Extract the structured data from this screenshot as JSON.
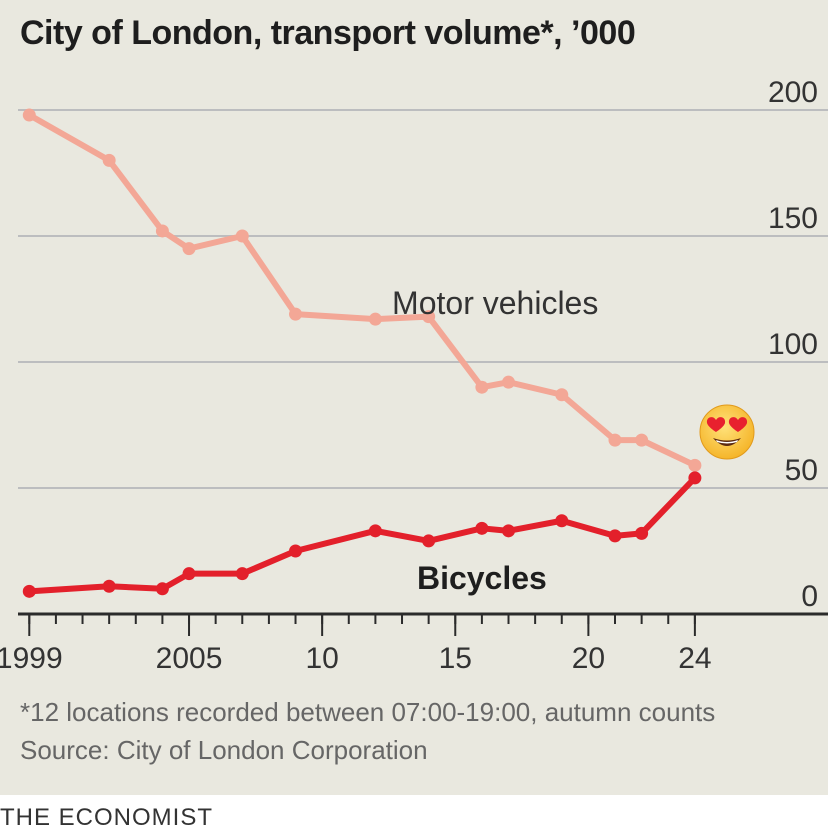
{
  "chart_data": {
    "type": "line",
    "title": "City of London, transport volume*, ’000",
    "xlabel": "",
    "ylabel": "",
    "xlim": [
      1997.9,
      2029
    ],
    "ylim": [
      0,
      200
    ],
    "yticks": [
      0,
      50,
      100,
      150,
      200
    ],
    "ytick_labels": [
      "0",
      "50",
      "100",
      "150",
      "200"
    ],
    "xticks": [
      1999,
      2005,
      2010,
      2015,
      2020,
      2024
    ],
    "xtick_labels": [
      "1999",
      "2005",
      "10",
      "15",
      "20",
      "24"
    ],
    "minor_xticks": [
      1999,
      2000,
      2001,
      2002,
      2003,
      2004,
      2005,
      2006,
      2007,
      2008,
      2009,
      2010,
      2011,
      2012,
      2013,
      2014,
      2015,
      2016,
      2017,
      2018,
      2019,
      2020,
      2021,
      2022,
      2023,
      2024
    ],
    "grid": true,
    "series": [
      {
        "name": "Motor vehicles",
        "label": "Motor vehicles",
        "color": "#f3a796",
        "x": [
          1999,
          2002,
          2004,
          2005,
          2007,
          2009,
          2012,
          2014,
          2016,
          2017,
          2019,
          2021,
          2022,
          2024
        ],
        "values": [
          198,
          180,
          152,
          145,
          150,
          119,
          117,
          118,
          90,
          92,
          87,
          69,
          69,
          59
        ]
      },
      {
        "name": "Bicycles",
        "label": "Bicycles",
        "color": "#e3202b",
        "x": [
          1999,
          2002,
          2004,
          2005,
          2007,
          2009,
          2012,
          2014,
          2016,
          2017,
          2019,
          2021,
          2022,
          2024
        ],
        "values": [
          9,
          11,
          10,
          16,
          16,
          25,
          33,
          29,
          34,
          33,
          37,
          31,
          32,
          54
        ]
      }
    ],
    "annotations": [
      {
        "text": "😍",
        "kind": "emoji",
        "meaning": "heart-eyes"
      }
    ]
  },
  "footnote": "*12 locations recorded between 07:00-19:00, autumn counts",
  "source": "Source: City of London Corporation",
  "publisher": "THE ECONOMIST"
}
